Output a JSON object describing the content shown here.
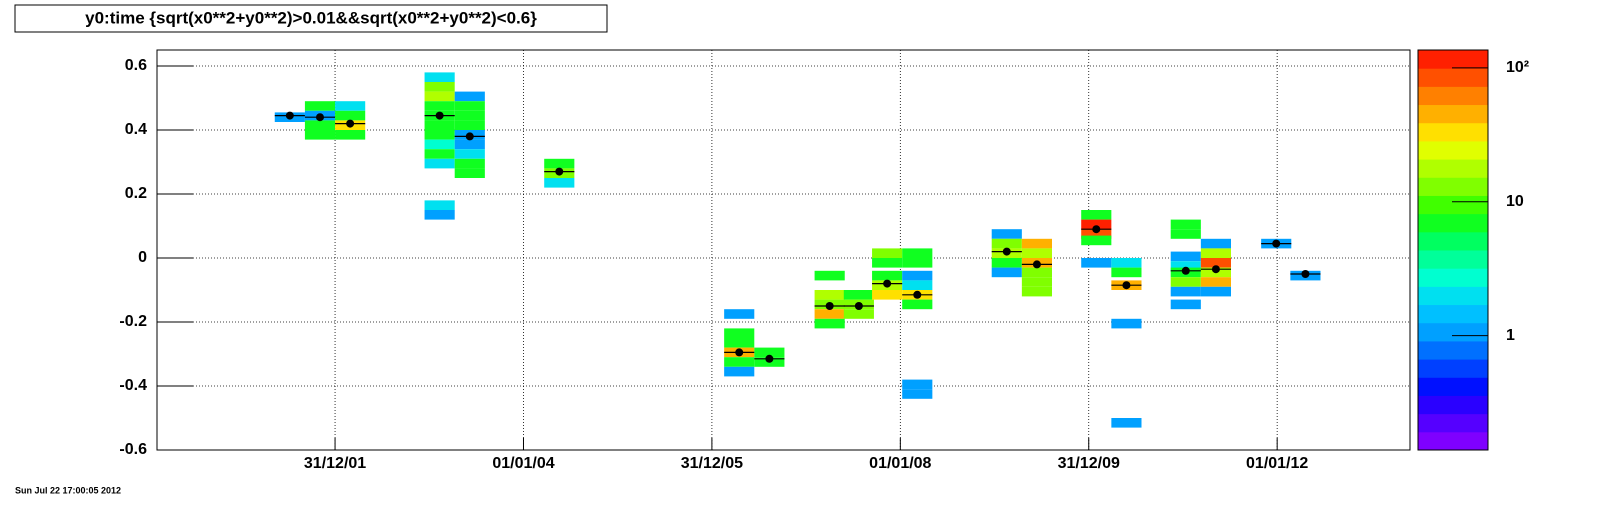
{
  "chart_data": {
    "type": "colz",
    "title": "y0:time {sqrt(x0**2+y0**2)>0.01&&sqrt(x0**2+y0**2)<0.6}",
    "timestamp": "Sun Jul 22 17:00:05 2012",
    "xlim": [
      2000.11,
      2013.41
    ],
    "ylim": [
      -0.6,
      0.65
    ],
    "xticks": [
      {
        "value": 2002.0,
        "label": "31/12/01"
      },
      {
        "value": 2004.0,
        "label": "01/01/04"
      },
      {
        "value": 2006.0,
        "label": "31/12/05"
      },
      {
        "value": 2008.0,
        "label": "01/01/08"
      },
      {
        "value": 2010.0,
        "label": "31/12/09"
      },
      {
        "value": 2012.0,
        "label": "01/01/12"
      }
    ],
    "yticks": [
      -0.6,
      -0.4,
      -0.2,
      0,
      0.2,
      0.4,
      0.6
    ],
    "grid": true,
    "zlog": true,
    "zlim": [
      0.14,
      136
    ],
    "zticks": [
      1,
      10,
      {
        "value": 100,
        "label": "10²"
      }
    ],
    "palette": [
      "#7f00ff",
      "#5500ff",
      "#2a00ff",
      "#0010ff",
      "#0040ff",
      "#0070ff",
      "#00a0ff",
      "#00c0ff",
      "#00e0f0",
      "#00ffd0",
      "#00ff9a",
      "#00ff60",
      "#10ff20",
      "#40ff00",
      "#80ff00",
      "#b0ff00",
      "#e0ff00",
      "#ffe000",
      "#ffb000",
      "#ff8000",
      "#ff5000",
      "#ff2000"
    ],
    "cells": {
      "x": [
        2001.52,
        2001.84,
        2001.84,
        2001.84,
        2001.84,
        2002.16,
        2002.16,
        2002.16,
        2002.16,
        2003.11,
        2003.11,
        2003.11,
        2003.11,
        2003.11,
        2003.11,
        2003.11,
        2003.11,
        2003.11,
        2003.11,
        2003.11,
        2003.11,
        2003.43,
        2003.43,
        2003.43,
        2003.43,
        2003.43,
        2003.43,
        2003.43,
        2003.43,
        2003.43,
        2004.38,
        2004.38,
        2004.38,
        2006.29,
        2006.29,
        2006.29,
        2006.29,
        2006.29,
        2006.29,
        2006.61,
        2006.61,
        2007.25,
        2007.25,
        2007.25,
        2007.25,
        2007.25,
        2007.56,
        2007.56,
        2007.56,
        2007.86,
        2007.86,
        2007.86,
        2007.86,
        2007.86,
        2008.18,
        2008.18,
        2008.18,
        2008.18,
        2008.18,
        2008.18,
        2008.18,
        2008.18,
        2009.13,
        2009.13,
        2009.13,
        2009.13,
        2009.13,
        2009.45,
        2009.45,
        2009.45,
        2009.45,
        2009.45,
        2009.45,
        2010.08,
        2010.08,
        2010.08,
        2010.08,
        2010.08,
        2010.4,
        2010.4,
        2010.4,
        2010.4,
        2010.4,
        2011.03,
        2011.03,
        2011.03,
        2011.03,
        2011.03,
        2011.03,
        2011.03,
        2011.03,
        2011.35,
        2011.35,
        2011.35,
        2011.35,
        2011.35,
        2011.35,
        2011.99,
        2012.3
      ],
      "y": [
        0.44,
        0.475,
        0.445,
        0.415,
        0.385,
        0.475,
        0.445,
        0.415,
        0.385,
        0.565,
        0.535,
        0.505,
        0.475,
        0.445,
        0.415,
        0.385,
        0.355,
        0.325,
        0.295,
        0.165,
        0.135,
        0.505,
        0.475,
        0.445,
        0.415,
        0.385,
        0.355,
        0.325,
        0.295,
        0.265,
        0.295,
        0.265,
        0.235,
        -0.175,
        -0.235,
        -0.265,
        -0.295,
        -0.325,
        -0.355,
        -0.295,
        -0.325,
        -0.055,
        -0.115,
        -0.145,
        -0.175,
        -0.205,
        -0.115,
        -0.145,
        -0.175,
        0.015,
        -0.015,
        -0.055,
        -0.085,
        -0.115,
        0.015,
        -0.015,
        -0.055,
        -0.085,
        -0.115,
        -0.145,
        -0.395,
        -0.425,
        0.075,
        0.045,
        0.015,
        -0.015,
        -0.045,
        0.045,
        0.015,
        -0.015,
        -0.045,
        -0.075,
        -0.105,
        0.135,
        0.105,
        0.075,
        0.055,
        -0.015,
        -0.015,
        -0.045,
        -0.085,
        -0.205,
        -0.515,
        0.105,
        0.075,
        0.005,
        -0.025,
        -0.045,
        -0.075,
        -0.105,
        -0.145,
        0.045,
        0.015,
        -0.015,
        -0.045,
        -0.075,
        -0.105,
        0.045,
        -0.055
      ],
      "z": [
        1,
        6,
        1.2,
        7,
        6,
        2,
        6,
        35,
        6,
        2,
        12,
        20,
        7,
        7,
        6,
        6,
        2.5,
        6,
        2,
        2,
        1.2,
        1.2,
        6,
        8,
        7,
        1.2,
        1.2,
        2,
        6,
        6,
        6,
        12,
        2,
        1.2,
        6,
        8,
        40,
        6,
        1.2,
        6,
        6,
        6,
        20,
        12,
        40,
        6,
        7,
        12,
        12,
        12,
        6,
        6,
        20,
        35,
        6,
        6,
        1.2,
        2,
        35,
        6,
        1.2,
        1.2,
        1.2,
        12,
        20,
        6,
        1.2,
        40,
        20,
        40,
        15,
        15,
        15,
        6,
        100,
        80,
        7,
        1.2,
        2,
        6,
        40,
        1.2,
        1.2,
        6,
        6,
        1.2,
        2,
        6,
        15,
        1.2,
        1.2,
        1.2,
        20,
        80,
        20,
        40,
        1.2,
        1.2,
        1.2
      ]
    },
    "profile": {
      "x": [
        2001.52,
        2001.84,
        2002.16,
        2003.11,
        2003.43,
        2004.38,
        2006.29,
        2006.61,
        2007.25,
        2007.56,
        2007.86,
        2008.18,
        2009.13,
        2009.45,
        2010.08,
        2010.4,
        2011.03,
        2011.35,
        2011.99,
        2012.3
      ],
      "values": [
        0.445,
        0.44,
        0.42,
        0.445,
        0.38,
        0.27,
        -0.295,
        -0.315,
        -0.15,
        -0.15,
        -0.08,
        -0.115,
        0.02,
        -0.02,
        0.09,
        -0.085,
        -0.04,
        -0.035,
        0.045,
        -0.05
      ]
    }
  }
}
